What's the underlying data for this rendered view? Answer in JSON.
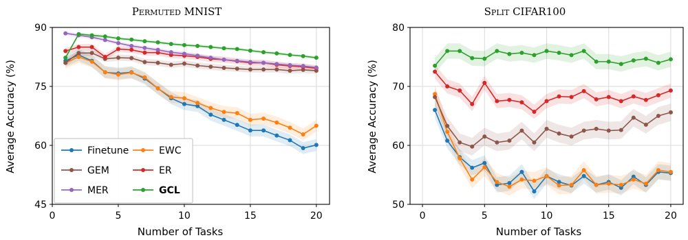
{
  "chart_data": [
    {
      "type": "line",
      "title": "Permuted MNIST",
      "xlabel": "Number of Tasks",
      "ylabel": "Average Accuracy (%)",
      "xlim": [
        0,
        21
      ],
      "ylim": [
        45,
        90
      ],
      "xticks": [
        0,
        5,
        10,
        15,
        20
      ],
      "yticks": [
        45,
        60,
        75,
        90
      ],
      "grid": true,
      "legend_position": "bottom-left",
      "x": [
        1,
        2,
        3,
        4,
        5,
        6,
        7,
        8,
        9,
        10,
        11,
        12,
        13,
        14,
        15,
        16,
        17,
        18,
        19,
        20
      ],
      "series": [
        {
          "name": "Finetune",
          "color": "#1f77b4",
          "band": 1.5,
          "values": [
            81.5,
            83.0,
            81.5,
            78.6,
            78.3,
            78.6,
            77.0,
            74.5,
            72.0,
            70.5,
            70.0,
            67.8,
            66.5,
            65.2,
            63.8,
            63.8,
            62.5,
            61.3,
            59.3,
            60.1
          ]
        },
        {
          "name": "EWC",
          "color": "#ff7f0e",
          "band": 1.5,
          "values": [
            81.0,
            82.5,
            81.3,
            78.6,
            78.0,
            78.5,
            77.3,
            74.5,
            72.3,
            72.0,
            70.8,
            69.5,
            68.5,
            68.2,
            66.5,
            66.8,
            65.8,
            64.5,
            62.8,
            65.0
          ]
        },
        {
          "name": "GEM",
          "color": "#8c564b",
          "band": 0.8,
          "values": [
            81.0,
            83.5,
            83.5,
            82.0,
            82.3,
            82.2,
            81.2,
            81.0,
            80.5,
            80.8,
            80.3,
            80.0,
            79.7,
            79.5,
            79.3,
            79.3,
            79.3,
            79.0,
            79.2,
            79.0
          ]
        },
        {
          "name": "ER",
          "color": "#d62728",
          "band": 0.8,
          "values": [
            84.0,
            85.0,
            85.0,
            82.5,
            84.5,
            84.3,
            83.6,
            83.6,
            83.0,
            82.8,
            82.5,
            82.0,
            81.8,
            81.4,
            81.0,
            81.0,
            80.5,
            80.2,
            80.0,
            79.6
          ]
        },
        {
          "name": "MER",
          "color": "#9467bd",
          "band": 0.5,
          "values": [
            88.5,
            88.0,
            87.5,
            86.8,
            86.0,
            85.3,
            84.8,
            84.3,
            83.7,
            83.3,
            82.8,
            82.3,
            81.8,
            81.5,
            81.2,
            81.0,
            80.7,
            80.4,
            80.2,
            79.8
          ]
        },
        {
          "name": "GCL",
          "color": "#2ca02c",
          "band": 0.4,
          "values": [
            82.3,
            88.3,
            88.0,
            87.7,
            87.2,
            86.9,
            86.5,
            86.2,
            85.8,
            85.5,
            85.3,
            85.0,
            84.7,
            84.5,
            84.1,
            83.7,
            83.4,
            83.0,
            82.7,
            82.3
          ]
        }
      ]
    },
    {
      "type": "line",
      "title": "Split CIFAR100",
      "xlabel": "Number of Tasks",
      "ylabel": "Average Accuracy (%)",
      "xlim": [
        -1,
        21
      ],
      "ylim": [
        50,
        80
      ],
      "xticks": [
        0,
        5,
        10,
        15,
        20
      ],
      "yticks": [
        50,
        60,
        70,
        80
      ],
      "grid": true,
      "x": [
        1,
        2,
        3,
        4,
        5,
        6,
        7,
        8,
        9,
        10,
        11,
        12,
        13,
        14,
        15,
        16,
        17,
        18,
        19,
        20
      ],
      "series": [
        {
          "name": "Finetune",
          "color": "#1f77b4",
          "band": 1.3,
          "values": [
            66.0,
            60.8,
            58.0,
            56.2,
            57.0,
            53.3,
            53.6,
            55.5,
            52.2,
            54.8,
            53.8,
            53.2,
            54.8,
            53.3,
            53.8,
            52.8,
            54.7,
            53.3,
            55.5,
            55.3
          ]
        },
        {
          "name": "EWC",
          "color": "#ff7f0e",
          "band": 1.5,
          "values": [
            68.7,
            62.3,
            57.8,
            54.2,
            56.3,
            53.8,
            53.0,
            54.2,
            54.0,
            54.8,
            53.2,
            53.3,
            55.8,
            53.3,
            53.5,
            53.3,
            54.2,
            53.5,
            55.8,
            55.5
          ]
        },
        {
          "name": "GEM",
          "color": "#8c564b",
          "band": 1.5,
          "values": [
            68.2,
            63.3,
            60.5,
            59.8,
            61.5,
            60.5,
            60.8,
            62.5,
            60.5,
            62.8,
            62.0,
            61.5,
            62.5,
            62.8,
            62.5,
            62.6,
            64.7,
            63.5,
            65.0,
            65.6
          ]
        },
        {
          "name": "ER",
          "color": "#d62728",
          "band": 1.2,
          "values": [
            72.5,
            70.0,
            69.3,
            67.0,
            70.6,
            67.5,
            67.7,
            67.3,
            65.7,
            67.5,
            68.3,
            68.2,
            69.2,
            67.8,
            68.2,
            67.5,
            68.3,
            67.7,
            68.5,
            69.3
          ]
        },
        {
          "name": "GCL",
          "color": "#2ca02c",
          "band": 1.3,
          "values": [
            73.5,
            76.0,
            76.0,
            74.8,
            74.7,
            76.0,
            75.5,
            75.7,
            75.3,
            76.0,
            75.7,
            75.3,
            76.0,
            74.2,
            74.2,
            73.8,
            74.4,
            74.7,
            74.0,
            74.6
          ]
        }
      ]
    }
  ],
  "legend": {
    "entries": [
      {
        "label": "Finetune",
        "color": "#1f77b4",
        "bold": false
      },
      {
        "label": "EWC",
        "color": "#ff7f0e",
        "bold": false
      },
      {
        "label": "GEM",
        "color": "#8c564b",
        "bold": false
      },
      {
        "label": "ER",
        "color": "#d62728",
        "bold": false
      },
      {
        "label": "MER",
        "color": "#9467bd",
        "bold": false
      },
      {
        "label": "GCL",
        "color": "#2ca02c",
        "bold": true
      }
    ]
  }
}
